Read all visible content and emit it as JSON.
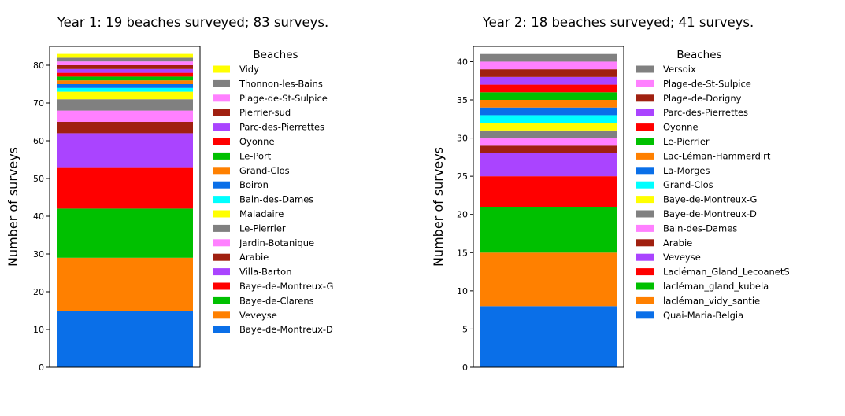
{
  "chart_data": [
    {
      "type": "bar",
      "stacked": true,
      "title": "Year 1: 19 beaches surveyed; 83 surveys.",
      "xlabel": "",
      "ylabel": "Number of surveys",
      "ylim": [
        0,
        85
      ],
      "yticks": [
        0,
        10,
        20,
        30,
        40,
        50,
        60,
        70,
        80
      ],
      "legend_title": "Beaches",
      "legend_position": "right",
      "series": [
        {
          "name": "Baye-de-Montreux-D",
          "value": 15,
          "color": "#0a6fe8"
        },
        {
          "name": "Veveyse",
          "value": 14,
          "color": "#ff8000"
        },
        {
          "name": "Baye-de-Clarens",
          "value": 13,
          "color": "#00c000"
        },
        {
          "name": "Baye-de-Montreux-G",
          "value": 11,
          "color": "#ff0000"
        },
        {
          "name": "Villa-Barton",
          "value": 9,
          "color": "#aa44ff"
        },
        {
          "name": "Arabie",
          "value": 3,
          "color": "#a02010"
        },
        {
          "name": "Jardin-Botanique",
          "value": 3,
          "color": "#ff80ff"
        },
        {
          "name": "Le-Pierrier",
          "value": 3,
          "color": "#808080"
        },
        {
          "name": "Maladaire",
          "value": 2,
          "color": "#ffff00"
        },
        {
          "name": "Bain-des-Dames",
          "value": 1,
          "color": "#00ffff"
        },
        {
          "name": "Boiron",
          "value": 1,
          "color": "#0a6fe8"
        },
        {
          "name": "Grand-Clos",
          "value": 1,
          "color": "#ff8000"
        },
        {
          "name": "Le-Port",
          "value": 1,
          "color": "#00c000"
        },
        {
          "name": "Oyonne",
          "value": 1,
          "color": "#ff0000"
        },
        {
          "name": "Parc-des-Pierrettes",
          "value": 1,
          "color": "#aa44ff"
        },
        {
          "name": "Pierrier-sud",
          "value": 1,
          "color": "#a02010"
        },
        {
          "name": "Plage-de-St-Sulpice",
          "value": 1,
          "color": "#ff80ff"
        },
        {
          "name": "Thonnon-les-Bains",
          "value": 1,
          "color": "#808080"
        },
        {
          "name": "Vidy",
          "value": 1,
          "color": "#ffff00"
        }
      ]
    },
    {
      "type": "bar",
      "stacked": true,
      "title": "Year 2: 18 beaches surveyed; 41 surveys.",
      "xlabel": "",
      "ylabel": "Number of surveys",
      "ylim": [
        0,
        42
      ],
      "yticks": [
        0,
        5,
        10,
        15,
        20,
        25,
        30,
        35,
        40
      ],
      "legend_title": "Beaches",
      "legend_position": "right",
      "series": [
        {
          "name": "Quai-Maria-Belgia",
          "value": 8,
          "color": "#0a6fe8"
        },
        {
          "name": "lacléman_vidy_santie",
          "value": 7,
          "color": "#ff8000"
        },
        {
          "name": "lacléman_gland_kubela",
          "value": 6,
          "color": "#00c000"
        },
        {
          "name": "Lacléman_Gland_LecoanetS",
          "value": 4,
          "color": "#ff0000"
        },
        {
          "name": "Veveyse",
          "value": 3,
          "color": "#aa44ff"
        },
        {
          "name": "Arabie",
          "value": 1,
          "color": "#a02010"
        },
        {
          "name": "Bain-des-Dames",
          "value": 1,
          "color": "#ff80ff"
        },
        {
          "name": "Baye-de-Montreux-D",
          "value": 1,
          "color": "#808080"
        },
        {
          "name": "Baye-de-Montreux-G",
          "value": 1,
          "color": "#ffff00"
        },
        {
          "name": "Grand-Clos",
          "value": 1,
          "color": "#00ffff"
        },
        {
          "name": "La-Morges",
          "value": 1,
          "color": "#0a6fe8"
        },
        {
          "name": "Lac-Léman-Hammerdirt",
          "value": 1,
          "color": "#ff8000"
        },
        {
          "name": "Le-Pierrier",
          "value": 1,
          "color": "#00c000"
        },
        {
          "name": "Oyonne",
          "value": 1,
          "color": "#ff0000"
        },
        {
          "name": "Parc-des-Pierrettes",
          "value": 1,
          "color": "#aa44ff"
        },
        {
          "name": "Plage-de-Dorigny",
          "value": 1,
          "color": "#a02010"
        },
        {
          "name": "Plage-de-St-Sulpice",
          "value": 1,
          "color": "#ff80ff"
        },
        {
          "name": "Versoix",
          "value": 1,
          "color": "#808080"
        }
      ]
    }
  ]
}
